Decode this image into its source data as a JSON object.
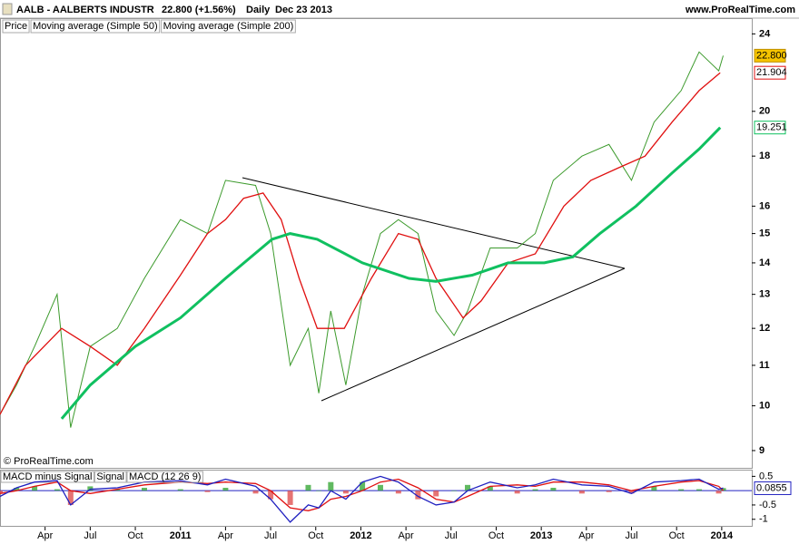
{
  "header": {
    "symbol": "AALB - AALBERTS INDUSTR",
    "quote": "22.800 (+1.56%)",
    "interval": "Daily",
    "date": "Dec 23 2013",
    "site": "www.ProRealTime.com",
    "copyright": "© ProRealTime.com"
  },
  "chart_data": [
    {
      "type": "line",
      "log_scale": true,
      "xlim": [
        0,
        50
      ],
      "ylim": [
        8.66,
        24.8
      ],
      "xticks": [
        {
          "value": 3,
          "label": "Apr"
        },
        {
          "value": 6,
          "label": "Jul"
        },
        {
          "value": 9,
          "label": "Oct"
        },
        {
          "value": 12,
          "label": "2011"
        },
        {
          "value": 15,
          "label": "Apr"
        },
        {
          "value": 18,
          "label": "Jul"
        },
        {
          "value": 21,
          "label": "Oct"
        },
        {
          "value": 24,
          "label": "2012"
        },
        {
          "value": 27,
          "label": "Apr"
        },
        {
          "value": 30,
          "label": "Jul"
        },
        {
          "value": 33,
          "label": "Oct"
        },
        {
          "value": 36,
          "label": "2013"
        },
        {
          "value": 39,
          "label": "Apr"
        },
        {
          "value": 42,
          "label": "Jul"
        },
        {
          "value": 45,
          "label": "Oct"
        },
        {
          "value": 48,
          "label": "2014"
        }
      ],
      "yticks": [
        9,
        10,
        11,
        12,
        13,
        14,
        15,
        16,
        18,
        20,
        24
      ],
      "series": [
        {
          "name": "Price",
          "color": "#3c9a2c",
          "x": [
            0,
            1.1,
            2.3,
            3.8,
            4.7,
            6,
            7.8,
            9.6,
            12,
            13.8,
            15,
            17,
            18,
            19.3,
            20.5,
            21.2,
            22,
            23,
            24.1,
            25.3,
            26.5,
            27.8,
            29,
            30.2,
            31.1,
            32.6,
            34.4,
            35.6,
            36.8,
            38.7,
            40.5,
            42,
            43.5,
            45.3,
            46.5,
            47.8,
            48.1
          ],
          "values": [
            9.8,
            10.5,
            11.5,
            13,
            9.5,
            11.5,
            12,
            13.5,
            15.5,
            15,
            17,
            16.8,
            15,
            11,
            12,
            10.3,
            12.5,
            10.5,
            13,
            15,
            15.5,
            15,
            12.5,
            11.8,
            12.5,
            14.5,
            14.5,
            15,
            17,
            18,
            18.5,
            17,
            19.5,
            21,
            23,
            22,
            22.8
          ],
          "tag": {
            "value": 22.8,
            "label": "22.800"
          }
        },
        {
          "name": "Moving average (Simple 50)",
          "color": "#e01010",
          "x": [
            0,
            1.7,
            4.1,
            6,
            7.8,
            9.6,
            12,
            13.8,
            15,
            16.2,
            17.5,
            18.7,
            19.9,
            21.1,
            22.9,
            24.7,
            26.5,
            27.8,
            29,
            30.8,
            32,
            33.8,
            35.6,
            37.5,
            39.3,
            41.1,
            42.9,
            44.7,
            46.5,
            47.9
          ],
          "values": [
            9.8,
            11,
            12,
            11.5,
            11,
            12,
            13.6,
            15,
            15.5,
            16.3,
            16.5,
            15.5,
            13.5,
            12,
            12,
            13.5,
            15,
            14.8,
            13.5,
            12.3,
            12.8,
            14,
            14.3,
            16,
            17,
            17.5,
            18,
            19.5,
            21,
            21.9
          ],
          "tag": {
            "value": 21.904,
            "label": "21.904"
          }
        },
        {
          "name": "Moving average (Simple 200)",
          "color": "#10c060",
          "x": [
            4.1,
            6,
            9,
            12,
            15,
            18.1,
            19.3,
            21.1,
            24.1,
            27.2,
            29,
            31.4,
            33.8,
            36.2,
            38.1,
            39.9,
            42.3,
            44.7,
            46.5,
            47.9
          ],
          "values": [
            9.7,
            10.5,
            11.5,
            12.3,
            13.5,
            14.8,
            15,
            14.8,
            14,
            13.5,
            13.4,
            13.6,
            14,
            14,
            14.2,
            15,
            16,
            17.3,
            18.3,
            19.251
          ],
          "tag": {
            "value": 19.251,
            "label": "19.251"
          }
        }
      ]
    },
    {
      "type": "macd",
      "xlim": [
        0,
        50
      ],
      "ylim": [
        -1.23,
        0.67
      ],
      "yticks": [
        0.5,
        {
          "value": -0.5,
          "label": "-0.5"
        },
        -1
      ],
      "x": [
        0,
        1.1,
        2.3,
        3.8,
        4.7,
        6,
        7.8,
        9.6,
        12,
        13.8,
        15,
        17,
        18,
        19.3,
        20.5,
        21.2,
        22,
        23,
        24.1,
        25.3,
        26.5,
        27.8,
        29,
        30.2,
        31.1,
        32.6,
        34.4,
        35.6,
        36.8,
        38.7,
        40.5,
        42,
        43.5,
        45.3,
        46.5,
        47.8,
        48.1
      ],
      "series": [
        {
          "name": "MACD minus Signal",
          "color": "#3aa83a",
          "kind": "bar",
          "neg_color": "#e05050",
          "values": [
            -0.1,
            0.1,
            0.15,
            0.05,
            -0.5,
            0.15,
            0.05,
            0.1,
            0.05,
            -0.05,
            0.1,
            -0.1,
            -0.3,
            -0.5,
            0.2,
            0,
            0.3,
            -0.1,
            0.3,
            0.2,
            -0.1,
            -0.3,
            -0.2,
            0,
            0.2,
            0.15,
            -0.1,
            0.05,
            0.1,
            -0.1,
            -0.05,
            -0.1,
            0.15,
            0.05,
            0.05,
            -0.1,
            0.09
          ]
        },
        {
          "name": "Signal",
          "color": "#e01010",
          "kind": "line",
          "values": [
            -0.1,
            0,
            0.15,
            0.3,
            0,
            -0.1,
            0.05,
            0.2,
            0.3,
            0.25,
            0.3,
            0.25,
            0,
            -0.6,
            -0.7,
            -0.6,
            -0.3,
            -0.2,
            0,
            0.3,
            0.4,
            0.1,
            -0.3,
            -0.4,
            -0.2,
            0.15,
            0.2,
            0.15,
            0.3,
            0.3,
            0.2,
            0,
            0.15,
            0.3,
            0.35,
            0.15,
            0
          ]
        },
        {
          "name": "MACD (12 26 9)",
          "color": "#2020c0",
          "kind": "line",
          "values": [
            -0.2,
            0.1,
            0.3,
            0.35,
            -0.5,
            0.05,
            0.1,
            0.3,
            0.35,
            0.2,
            0.4,
            0.15,
            -0.3,
            -1.1,
            -0.5,
            -0.6,
            0,
            -0.3,
            0.3,
            0.5,
            0.3,
            -0.2,
            -0.5,
            -0.4,
            0,
            0.3,
            0.1,
            0.2,
            0.4,
            0.2,
            0.15,
            -0.1,
            0.3,
            0.35,
            0.4,
            0.05,
            0.09
          ]
        }
      ],
      "zero_line": 0,
      "tag": {
        "value": 0.0855,
        "label": "0.0855"
      }
    }
  ]
}
